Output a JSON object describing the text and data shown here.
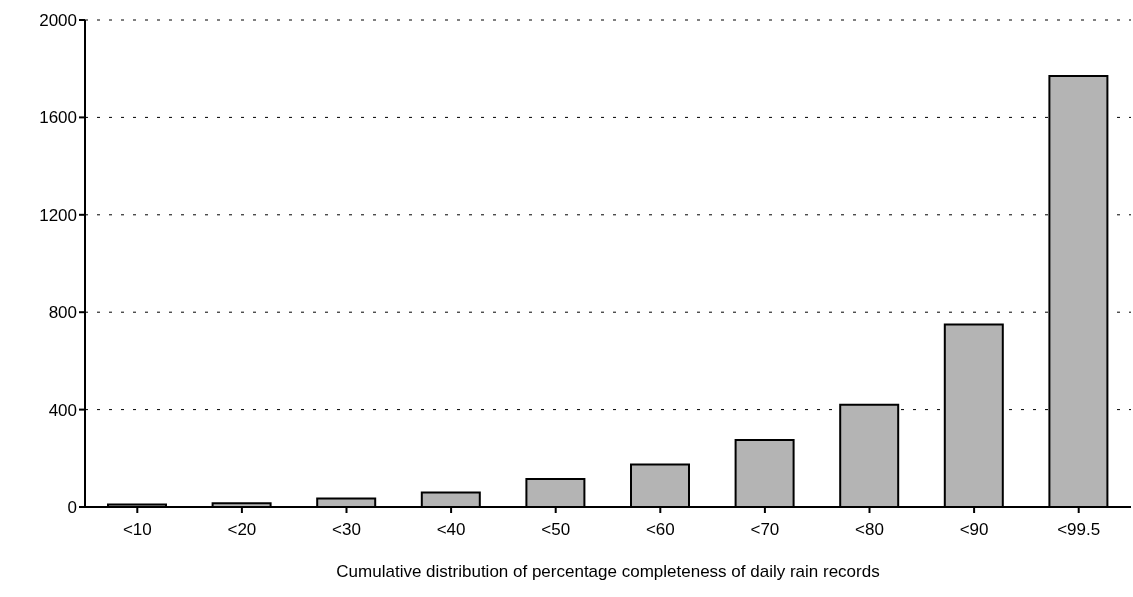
{
  "chart_data": {
    "type": "bar",
    "xlabel": "Cumulative distribution of percentage completeness of daily rain records",
    "categories": [
      "<10",
      "<20",
      "<30",
      "<40",
      "<50",
      "<60",
      "<70",
      "<80",
      "<90",
      "<99.5"
    ],
    "values": [
      10,
      15,
      35,
      60,
      115,
      175,
      275,
      420,
      750,
      1770
    ],
    "color": "#b4b4b4",
    "ylim": [
      0,
      2000
    ],
    "yticks": [
      0,
      400,
      800,
      1200,
      1600,
      2000
    ],
    "grid": "y"
  }
}
